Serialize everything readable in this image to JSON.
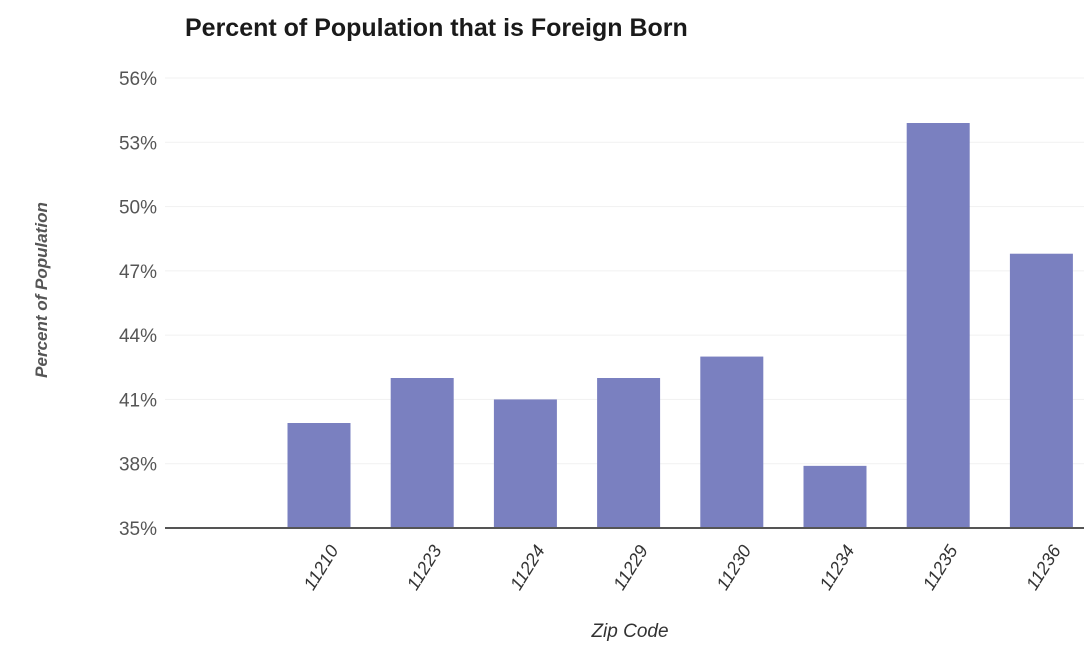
{
  "chart_data": {
    "type": "bar",
    "title": "Percent of Population that is Foreign Born",
    "xlabel": "Zip Code",
    "ylabel": "Percent of Population",
    "categories": [
      "11210",
      "11223",
      "11224",
      "11229",
      "11230",
      "11234",
      "11235",
      "11236"
    ],
    "values": [
      39.9,
      42.0,
      41.0,
      42.0,
      43.0,
      37.9,
      53.9,
      47.8
    ],
    "ylim": [
      35,
      56
    ],
    "yticks": [
      "35%",
      "38%",
      "41%",
      "44%",
      "47%",
      "50%",
      "53%",
      "56%"
    ],
    "ytick_values": [
      35,
      38,
      41,
      44,
      47,
      50,
      53,
      56
    ],
    "bar_color": "#7a80c0",
    "grid": true,
    "legend": false
  }
}
